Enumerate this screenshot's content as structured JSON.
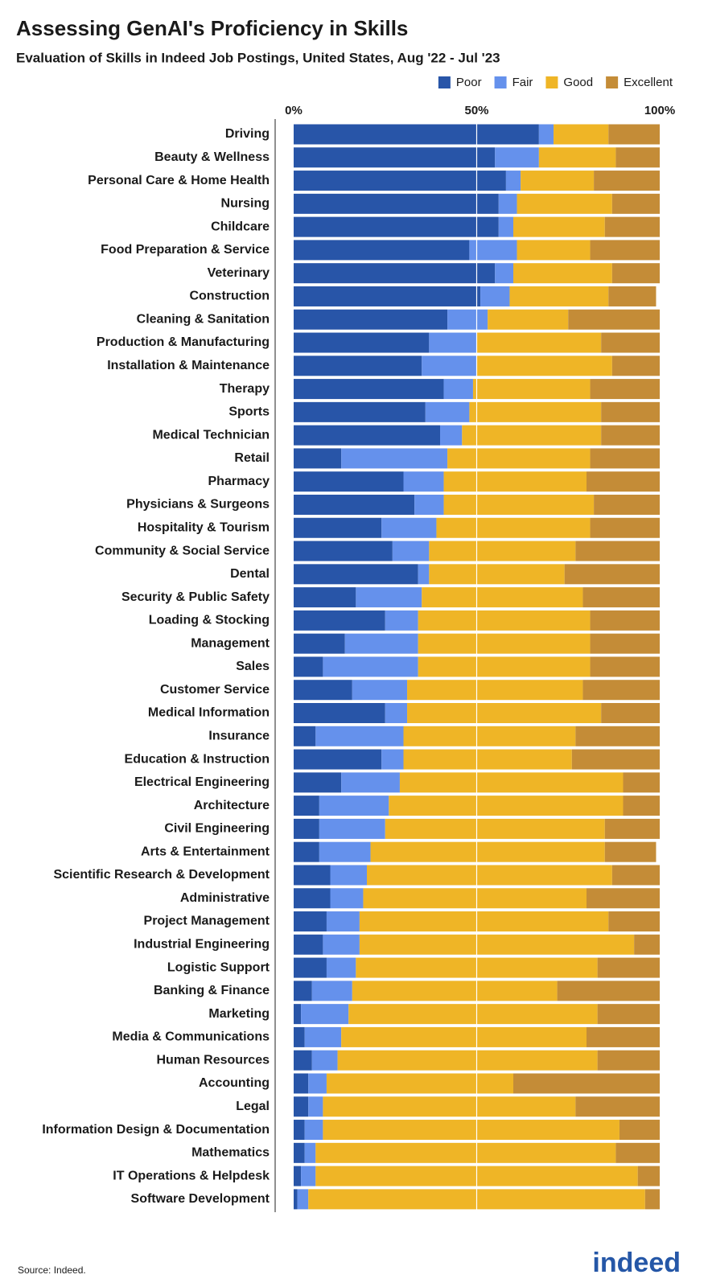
{
  "chart_data": {
    "type": "stacked-bar-horizontal",
    "title": "Assessing GenAI's Proficiency in Skills",
    "subtitle": "Evaluation of Skills in Indeed Job Postings, United States, Aug '22 - Jul '23",
    "source": "Source: Indeed.",
    "logo": "indeed",
    "categories": [
      "Driving",
      "Beauty & Wellness",
      "Personal Care & Home Health",
      "Nursing",
      "Childcare",
      "Food Preparation & Service",
      "Veterinary",
      "Construction",
      "Cleaning & Sanitation",
      "Production & Manufacturing",
      "Installation & Maintenance",
      "Therapy",
      "Sports",
      "Medical Technician",
      "Retail",
      "Pharmacy",
      "Physicians & Surgeons",
      "Hospitality & Tourism",
      "Community & Social Service",
      "Dental",
      "Security & Public Safety",
      "Loading & Stocking",
      "Management",
      "Sales",
      "Customer Service",
      "Medical Information",
      "Insurance",
      "Education & Instruction",
      "Electrical Engineering",
      "Architecture",
      "Civil Engineering",
      "Arts & Entertainment",
      "Scientific Research & Development",
      "Administrative",
      "Project Management",
      "Industrial Engineering",
      "Logistic Support",
      "Banking & Finance",
      "Marketing",
      "Media & Communications",
      "Human Resources",
      "Accounting",
      "Legal",
      "Information Design & Documentation",
      "Mathematics",
      "IT Operations & Helpdesk",
      "Software Development"
    ],
    "series": [
      {
        "name": "Poor",
        "color": "#2855a8",
        "values": [
          67,
          55,
          58,
          56,
          56,
          48,
          55,
          51,
          42,
          37,
          35,
          41,
          36,
          40,
          13,
          30,
          33,
          24,
          27,
          34,
          17,
          25,
          14,
          8,
          16,
          25,
          6,
          24,
          13,
          7,
          7,
          7,
          10,
          10,
          9,
          8,
          9,
          5,
          2,
          3,
          5,
          4,
          4,
          3,
          3,
          2,
          1
        ]
      },
      {
        "name": "Fair",
        "color": "#6591ec",
        "values": [
          4,
          12,
          4,
          5,
          4,
          13,
          5,
          8,
          11,
          13,
          15,
          8,
          12,
          6,
          29,
          11,
          8,
          15,
          10,
          3,
          18,
          9,
          20,
          26,
          15,
          6,
          24,
          6,
          16,
          19,
          18,
          14,
          10,
          9,
          9,
          10,
          8,
          11,
          13,
          10,
          7,
          5,
          4,
          5,
          3,
          4,
          3
        ]
      },
      {
        "name": "Good",
        "color": "#efb526",
        "values": [
          15,
          21,
          20,
          26,
          25,
          20,
          27,
          27,
          22,
          34,
          37,
          32,
          36,
          38,
          39,
          39,
          41,
          42,
          40,
          37,
          44,
          47,
          47,
          47,
          48,
          53,
          47,
          46,
          61,
          64,
          60,
          64,
          67,
          61,
          68,
          75,
          66,
          56,
          68,
          67,
          71,
          51,
          69,
          81,
          82,
          88,
          92
        ]
      },
      {
        "name": "Excellent",
        "color": "#c48c37",
        "values": [
          14,
          12,
          18,
          13,
          15,
          19,
          13,
          13,
          25,
          16,
          13,
          19,
          16,
          16,
          19,
          20,
          18,
          19,
          23,
          26,
          21,
          19,
          19,
          19,
          21,
          16,
          23,
          24,
          10,
          10,
          15,
          14,
          13,
          20,
          14,
          7,
          17,
          28,
          17,
          20,
          17,
          40,
          23,
          11,
          12,
          6,
          4
        ]
      }
    ],
    "xlim": [
      0,
      100
    ],
    "xticks": [
      {
        "value": 0,
        "label": "0%"
      },
      {
        "value": 50,
        "label": "50%"
      },
      {
        "value": 100,
        "label": "100%"
      }
    ],
    "legend": "top-right"
  }
}
